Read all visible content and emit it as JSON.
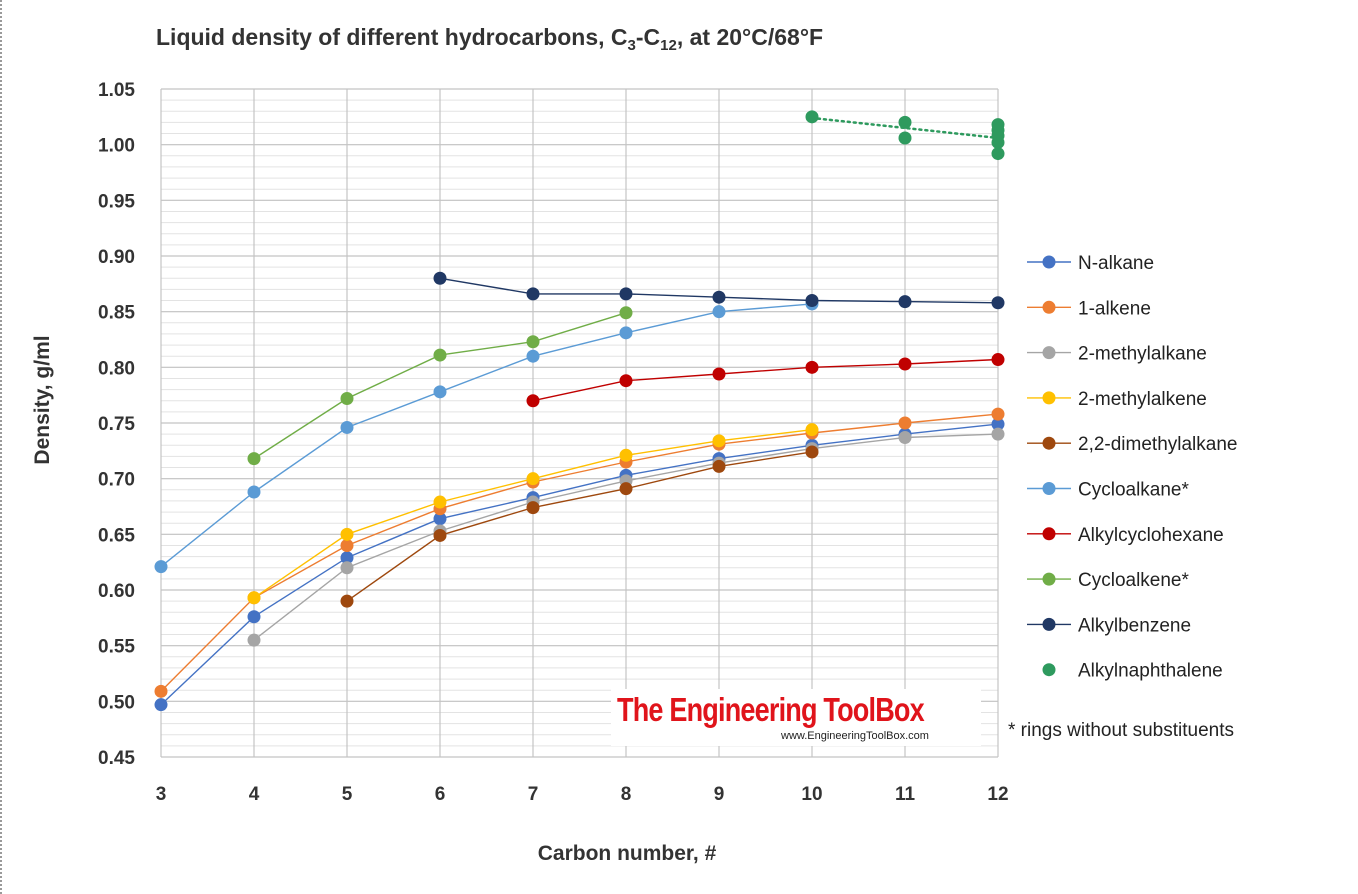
{
  "title": {
    "main": "Liquid density of different hydrocarbons, C",
    "sub1": "3",
    "mid": "-C",
    "sub2": "12",
    "end": ", at 20°C/68°F"
  },
  "footnote": "* rings without substituents",
  "watermark": {
    "title": "The Engineering ToolBox",
    "url": "www.EngineeringToolBox.com"
  },
  "chart_data": {
    "type": "line",
    "title": "Liquid density of different hydrocarbons, C3-C12, at 20°C/68°F",
    "xlabel": "Carbon number, #",
    "ylabel": "Density,  g/ml",
    "xlim": [
      3,
      12
    ],
    "ylim": [
      0.45,
      1.05
    ],
    "xticks": [
      3,
      4,
      5,
      6,
      7,
      8,
      9,
      10,
      11,
      12
    ],
    "yticks": [
      "0.45",
      "0.50",
      "0.55",
      "0.60",
      "0.65",
      "0.70",
      "0.75",
      "0.80",
      "0.85",
      "0.90",
      "0.95",
      "1.00",
      "1.05"
    ],
    "major_y_step": 0.05,
    "minor_y_step": 0.01,
    "grid": true,
    "legend_position": "right",
    "series": [
      {
        "name": "N-alkane",
        "color": "#4472c4",
        "points": [
          [
            3,
            0.497
          ],
          [
            4,
            0.576
          ],
          [
            5,
            0.629
          ],
          [
            6,
            0.664
          ],
          [
            7,
            0.683
          ],
          [
            8,
            0.703
          ],
          [
            9,
            0.718
          ],
          [
            10,
            0.73
          ],
          [
            11,
            0.74
          ],
          [
            12,
            0.749
          ]
        ]
      },
      {
        "name": "1-alkene",
        "color": "#ed7d31",
        "points": [
          [
            3,
            0.509
          ],
          [
            4,
            0.593
          ],
          [
            5,
            0.64
          ],
          [
            6,
            0.673
          ],
          [
            7,
            0.697
          ],
          [
            8,
            0.715
          ],
          [
            9,
            0.731
          ],
          [
            10,
            0.741
          ],
          [
            11,
            0.75
          ],
          [
            12,
            0.758
          ]
        ]
      },
      {
        "name": "2-methylalkane",
        "color": "#a5a5a5",
        "points": [
          [
            4,
            0.555
          ],
          [
            5,
            0.62
          ],
          [
            6,
            0.653
          ],
          [
            7,
            0.679
          ],
          [
            8,
            0.698
          ],
          [
            9,
            0.714
          ],
          [
            10,
            0.727
          ],
          [
            11,
            0.737
          ],
          [
            12,
            0.74
          ]
        ]
      },
      {
        "name": "2-methylalkene",
        "color": "#ffc000",
        "points": [
          [
            4,
            0.593
          ],
          [
            5,
            0.65
          ],
          [
            6,
            0.679
          ],
          [
            7,
            0.7
          ],
          [
            8,
            0.721
          ],
          [
            9,
            0.734
          ],
          [
            10,
            0.744
          ]
        ]
      },
      {
        "name": "2,2-dimethylalkane",
        "color": "#9e480e",
        "points": [
          [
            5,
            0.59
          ],
          [
            6,
            0.649
          ],
          [
            7,
            0.674
          ],
          [
            8,
            0.691
          ],
          [
            9,
            0.711
          ],
          [
            10,
            0.724
          ]
        ]
      },
      {
        "name": "Cycloalkane*",
        "color": "#5b9bd5",
        "points": [
          [
            3,
            0.621
          ],
          [
            4,
            0.688
          ],
          [
            5,
            0.746
          ],
          [
            6,
            0.778
          ],
          [
            7,
            0.81
          ],
          [
            8,
            0.831
          ],
          [
            9,
            0.85
          ],
          [
            10,
            0.857
          ]
        ]
      },
      {
        "name": "Alkylcyclohexane",
        "color": "#c00000",
        "points": [
          [
            7,
            0.77
          ],
          [
            8,
            0.788
          ],
          [
            9,
            0.794
          ],
          [
            10,
            0.8
          ],
          [
            11,
            0.803
          ],
          [
            12,
            0.807
          ]
        ]
      },
      {
        "name": "Cycloalkene*",
        "color": "#70ad47",
        "points": [
          [
            4,
            0.718
          ],
          [
            5,
            0.772
          ],
          [
            6,
            0.811
          ],
          [
            7,
            0.823
          ],
          [
            8,
            0.849
          ]
        ]
      },
      {
        "name": "Alkylbenzene",
        "color": "#203864",
        "points": [
          [
            6,
            0.88
          ],
          [
            7,
            0.866
          ],
          [
            8,
            0.866
          ],
          [
            9,
            0.863
          ],
          [
            10,
            0.86
          ],
          [
            11,
            0.859
          ],
          [
            12,
            0.858
          ]
        ]
      },
      {
        "name": "Alkylnaphthalene",
        "color": "#2e9a5e",
        "style": "markers-with-dotted-trend",
        "points": [
          [
            10,
            1.025
          ],
          [
            11,
            1.02
          ],
          [
            11,
            1.006
          ],
          [
            12,
            1.018
          ],
          [
            12,
            1.013
          ],
          [
            12,
            1.008
          ],
          [
            12,
            1.002
          ],
          [
            12,
            0.992
          ]
        ],
        "trend": [
          [
            10,
            1.024
          ],
          [
            12,
            1.006
          ]
        ]
      }
    ]
  }
}
